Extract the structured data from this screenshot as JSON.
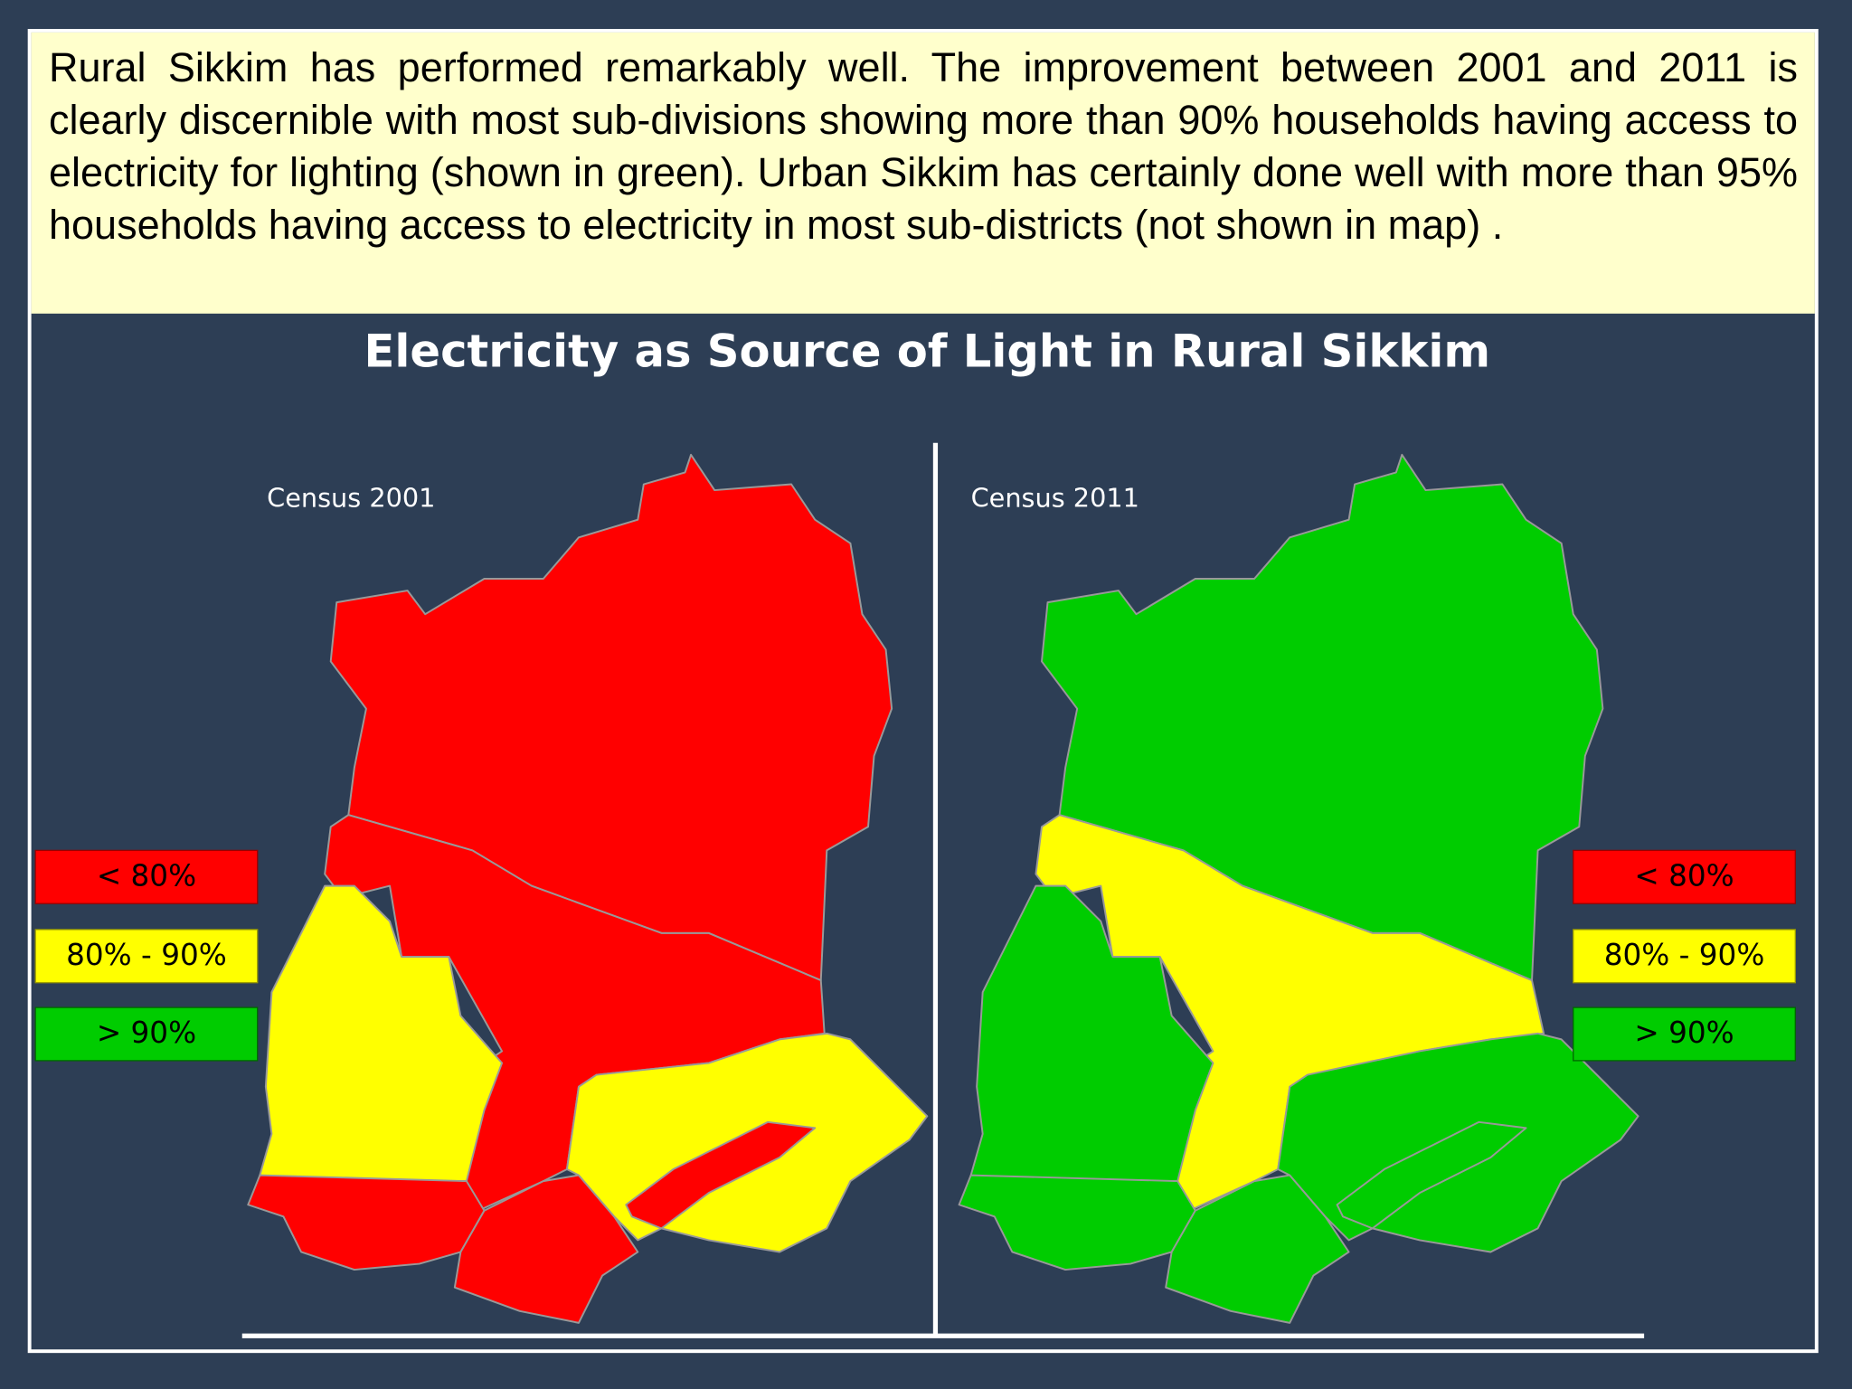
{
  "text": "Rural Sikkim has performed remarkably well. The improvement between 2001 and 2011 is clearly discernible with most sub-divisions showing more than 90% households having access to electricity for lighting (shown in green). Urban Sikkim has certainly done well with more than 95% households having access to electricity in most sub-districts (not shown in map) .",
  "title": "Electricity as Source of Light in Rural Sikkim",
  "maps": [
    {
      "label": "Census 2001"
    },
    {
      "label": "Census 2011"
    }
  ],
  "legends": [
    [
      "< 80%",
      "80% - 90%",
      "> 90%"
    ],
    [
      "< 80%",
      "80% - 90%",
      "> 90%"
    ]
  ]
}
